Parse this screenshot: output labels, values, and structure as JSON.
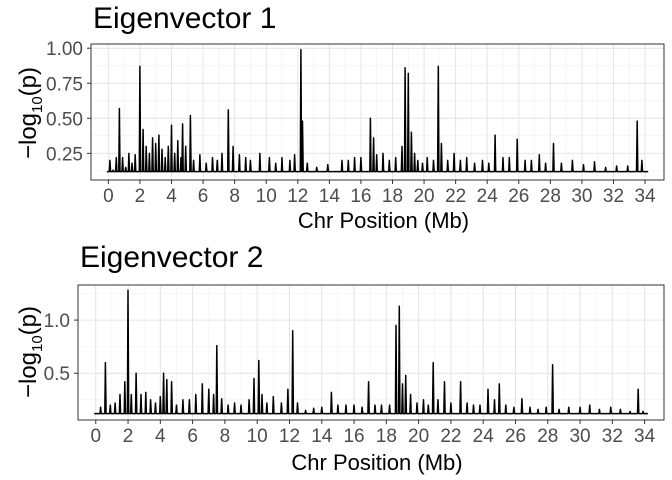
{
  "chart_data": [
    {
      "type": "line",
      "title": "Eigenvector 1",
      "xlabel": "Chr Position (Mb)",
      "ylabel_main": "−log",
      "ylabel_sub": "10",
      "ylabel_tail": "(p)",
      "xlim": [
        -1.1,
        35.2
      ],
      "ylim": [
        0.06,
        1.03
      ],
      "xticks": [
        0,
        2,
        4,
        6,
        8,
        10,
        12,
        14,
        16,
        18,
        20,
        22,
        24,
        26,
        28,
        30,
        32,
        34
      ],
      "xtick_labels": [
        "0",
        "2",
        "4",
        "6",
        "8",
        "10",
        "12",
        "14",
        "16",
        "18",
        "20",
        "22",
        "24",
        "26",
        "28",
        "30",
        "32",
        "34"
      ],
      "yticks": [
        0.25,
        0.5,
        0.75,
        1.0
      ],
      "ytick_labels": [
        "0.25",
        "0.50",
        "0.75",
        "1.00"
      ],
      "grid": true,
      "baseline": 0.12,
      "x_end": 34.2,
      "series": [
        {
          "color": "#000000",
          "peaks": [
            [
              0.1,
              0.2
            ],
            [
              0.3,
              0.13
            ],
            [
              0.5,
              0.22
            ],
            [
              0.7,
              0.57
            ],
            [
              0.9,
              0.22
            ],
            [
              1.1,
              0.15
            ],
            [
              1.3,
              0.25
            ],
            [
              1.5,
              0.18
            ],
            [
              1.7,
              0.24
            ],
            [
              2.0,
              0.87
            ],
            [
              2.2,
              0.42
            ],
            [
              2.4,
              0.3
            ],
            [
              2.6,
              0.25
            ],
            [
              2.8,
              0.36
            ],
            [
              3.0,
              0.32
            ],
            [
              3.2,
              0.38
            ],
            [
              3.4,
              0.28
            ],
            [
              3.6,
              0.22
            ],
            [
              3.8,
              0.3
            ],
            [
              4.0,
              0.45
            ],
            [
              4.2,
              0.25
            ],
            [
              4.4,
              0.34
            ],
            [
              4.6,
              0.22
            ],
            [
              4.7,
              0.46
            ],
            [
              4.9,
              0.3
            ],
            [
              5.2,
              0.52
            ],
            [
              5.4,
              0.2
            ],
            [
              5.8,
              0.24
            ],
            [
              6.2,
              0.18
            ],
            [
              6.6,
              0.22
            ],
            [
              6.9,
              0.2
            ],
            [
              7.2,
              0.25
            ],
            [
              7.6,
              0.56
            ],
            [
              7.9,
              0.3
            ],
            [
              8.3,
              0.24
            ],
            [
              8.7,
              0.22
            ],
            [
              9.0,
              0.2
            ],
            [
              9.6,
              0.25
            ],
            [
              10.2,
              0.22
            ],
            [
              10.6,
              0.18
            ],
            [
              11.0,
              0.22
            ],
            [
              11.5,
              0.2
            ],
            [
              11.8,
              0.24
            ],
            [
              12.2,
              0.99
            ],
            [
              12.3,
              0.48
            ],
            [
              12.6,
              0.18
            ],
            [
              13.2,
              0.15
            ],
            [
              13.9,
              0.17
            ],
            [
              14.8,
              0.2
            ],
            [
              15.2,
              0.2
            ],
            [
              15.6,
              0.22
            ],
            [
              16.0,
              0.22
            ],
            [
              16.6,
              0.5
            ],
            [
              16.8,
              0.36
            ],
            [
              17.0,
              0.24
            ],
            [
              17.4,
              0.25
            ],
            [
              17.8,
              0.2
            ],
            [
              18.2,
              0.22
            ],
            [
              18.6,
              0.3
            ],
            [
              18.8,
              0.86
            ],
            [
              19.0,
              0.82
            ],
            [
              19.2,
              0.4
            ],
            [
              19.4,
              0.25
            ],
            [
              19.6,
              0.2
            ],
            [
              19.9,
              0.18
            ],
            [
              20.2,
              0.22
            ],
            [
              20.6,
              0.2
            ],
            [
              20.9,
              0.87
            ],
            [
              21.1,
              0.32
            ],
            [
              21.5,
              0.2
            ],
            [
              21.9,
              0.25
            ],
            [
              22.3,
              0.2
            ],
            [
              22.7,
              0.22
            ],
            [
              23.2,
              0.18
            ],
            [
              23.7,
              0.2
            ],
            [
              24.1,
              0.18
            ],
            [
              24.5,
              0.38
            ],
            [
              25.0,
              0.22
            ],
            [
              25.4,
              0.22
            ],
            [
              25.9,
              0.35
            ],
            [
              26.4,
              0.2
            ],
            [
              26.8,
              0.2
            ],
            [
              27.3,
              0.24
            ],
            [
              27.7,
              0.18
            ],
            [
              28.2,
              0.32
            ],
            [
              28.7,
              0.18
            ],
            [
              29.4,
              0.2
            ],
            [
              30.1,
              0.17
            ],
            [
              30.8,
              0.19
            ],
            [
              31.5,
              0.15
            ],
            [
              32.2,
              0.16
            ],
            [
              32.9,
              0.16
            ],
            [
              33.5,
              0.48
            ],
            [
              33.8,
              0.2
            ]
          ]
        }
      ]
    },
    {
      "type": "line",
      "title": "Eigenvector 2",
      "xlabel": "Chr Position (Mb)",
      "ylabel_main": "−log",
      "ylabel_sub": "10",
      "ylabel_tail": "(p)",
      "xlim": [
        -1.1,
        35.2
      ],
      "ylim": [
        0.06,
        1.33
      ],
      "xticks": [
        0,
        2,
        4,
        6,
        8,
        10,
        12,
        14,
        16,
        18,
        20,
        22,
        24,
        26,
        28,
        30,
        32,
        34
      ],
      "xtick_labels": [
        "0",
        "2",
        "4",
        "6",
        "8",
        "10",
        "12",
        "14",
        "16",
        "18",
        "20",
        "22",
        "24",
        "26",
        "28",
        "30",
        "32",
        "34"
      ],
      "yticks": [
        0.5,
        1.0
      ],
      "ytick_labels": [
        "0.5",
        "1.0"
      ],
      "grid": true,
      "baseline": 0.12,
      "x_end": 34.2,
      "series": [
        {
          "color": "#000000",
          "peaks": [
            [
              0.3,
              0.18
            ],
            [
              0.6,
              0.6
            ],
            [
              0.9,
              0.2
            ],
            [
              1.2,
              0.22
            ],
            [
              1.5,
              0.3
            ],
            [
              1.8,
              0.42
            ],
            [
              2.0,
              1.28
            ],
            [
              2.2,
              0.3
            ],
            [
              2.5,
              0.5
            ],
            [
              2.8,
              0.3
            ],
            [
              3.1,
              0.32
            ],
            [
              3.4,
              0.25
            ],
            [
              3.7,
              0.22
            ],
            [
              4.0,
              0.28
            ],
            [
              4.2,
              0.5
            ],
            [
              4.4,
              0.44
            ],
            [
              4.7,
              0.42
            ],
            [
              5.0,
              0.2
            ],
            [
              5.4,
              0.25
            ],
            [
              5.8,
              0.25
            ],
            [
              6.2,
              0.3
            ],
            [
              6.6,
              0.4
            ],
            [
              7.0,
              0.35
            ],
            [
              7.3,
              0.3
            ],
            [
              7.5,
              0.76
            ],
            [
              7.8,
              0.26
            ],
            [
              8.2,
              0.2
            ],
            [
              8.6,
              0.22
            ],
            [
              9.0,
              0.2
            ],
            [
              9.5,
              0.25
            ],
            [
              9.8,
              0.45
            ],
            [
              10.1,
              0.62
            ],
            [
              10.3,
              0.3
            ],
            [
              10.6,
              0.22
            ],
            [
              11.0,
              0.28
            ],
            [
              11.5,
              0.22
            ],
            [
              11.9,
              0.35
            ],
            [
              12.2,
              0.9
            ],
            [
              12.5,
              0.22
            ],
            [
              13.0,
              0.15
            ],
            [
              13.5,
              0.17
            ],
            [
              14.0,
              0.18
            ],
            [
              14.6,
              0.32
            ],
            [
              15.0,
              0.2
            ],
            [
              15.5,
              0.2
            ],
            [
              16.0,
              0.2
            ],
            [
              16.5,
              0.18
            ],
            [
              16.9,
              0.42
            ],
            [
              17.3,
              0.2
            ],
            [
              17.7,
              0.2
            ],
            [
              18.2,
              0.2
            ],
            [
              18.6,
              0.95
            ],
            [
              18.8,
              1.13
            ],
            [
              19.0,
              0.4
            ],
            [
              19.2,
              0.48
            ],
            [
              19.5,
              0.3
            ],
            [
              19.9,
              0.22
            ],
            [
              20.3,
              0.25
            ],
            [
              20.6,
              0.2
            ],
            [
              20.9,
              0.6
            ],
            [
              21.2,
              0.25
            ],
            [
              21.6,
              0.42
            ],
            [
              22.0,
              0.22
            ],
            [
              22.6,
              0.42
            ],
            [
              23.0,
              0.22
            ],
            [
              23.4,
              0.2
            ],
            [
              23.8,
              0.2
            ],
            [
              24.3,
              0.35
            ],
            [
              24.7,
              0.25
            ],
            [
              25.0,
              0.4
            ],
            [
              25.4,
              0.2
            ],
            [
              25.9,
              0.18
            ],
            [
              26.4,
              0.26
            ],
            [
              26.9,
              0.18
            ],
            [
              27.4,
              0.16
            ],
            [
              27.9,
              0.18
            ],
            [
              28.3,
              0.58
            ],
            [
              28.7,
              0.16
            ],
            [
              29.3,
              0.18
            ],
            [
              30.0,
              0.18
            ],
            [
              30.6,
              0.2
            ],
            [
              31.2,
              0.16
            ],
            [
              31.9,
              0.18
            ],
            [
              32.5,
              0.16
            ],
            [
              33.1,
              0.14
            ],
            [
              33.6,
              0.35
            ],
            [
              33.9,
              0.14
            ]
          ]
        }
      ]
    }
  ]
}
